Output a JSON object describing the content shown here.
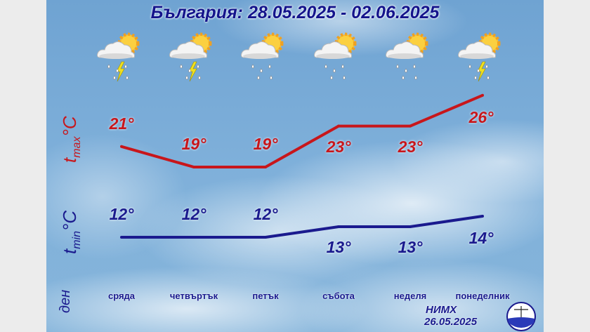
{
  "title": "България: 28.05.2025 - 02.06.2025",
  "axis_labels": {
    "tmax": "t",
    "tmax_sub": "max",
    "tmax_unit": "°C",
    "tmin": "t",
    "tmin_sub": "min",
    "tmin_unit": "°C",
    "day": "ден"
  },
  "chart_data": {
    "type": "line",
    "title": "България: 28.05.2025 - 02.06.2025",
    "categories": [
      "сряда",
      "четвъртък",
      "петък",
      "събота",
      "неделя",
      "понеделник"
    ],
    "series": [
      {
        "name": "tmax°C",
        "color": "#c8161b",
        "values": [
          21,
          19,
          19,
          23,
          23,
          26
        ],
        "labels": [
          "21°",
          "19°",
          "19°",
          "23°",
          "23°",
          "26°"
        ]
      },
      {
        "name": "tmin°C",
        "color": "#1a1a8e",
        "values": [
          12,
          12,
          12,
          13,
          13,
          14
        ],
        "labels": [
          "12°",
          "12°",
          "12°",
          "13°",
          "13°",
          "14°"
        ]
      }
    ],
    "icons": [
      "cloud-sun-rain-thunder-icon",
      "cloud-sun-rain-thunder-icon",
      "cloud-sun-rain-icon",
      "cloud-sun-rain-icon",
      "cloud-sun-rain-icon",
      "cloud-sun-rain-thunder-icon"
    ],
    "grid": false
  },
  "footer": {
    "org": "НИМХ",
    "date": "26.05.2025"
  }
}
